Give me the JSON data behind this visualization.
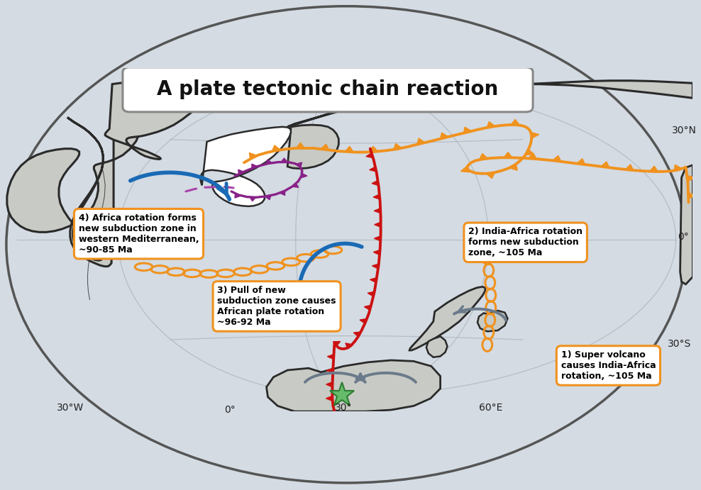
{
  "title": "A plate tectonic chain reaction",
  "bg_color": "#d4dbe3",
  "globe_ocean": "#d4dbe3",
  "land_fill": "#c8cac5",
  "land_edge": "#2a2a2a",
  "tethys_fill": "#ffffff",
  "orange_color": "#f0921e",
  "red_color": "#cc1111",
  "purple_color": "#882288",
  "blue_color": "#1a6ab5",
  "gray_color": "#6a7a8a",
  "chain_color": "#f0921e",
  "star_fill": "#66bb6a",
  "star_edge": "#2e7d32",
  "ann_edge": "#f0921e",
  "ann1": "1) Super volcano\ncauses India-Africa\nrotation, ~105 Ma",
  "ann2": "2) India-Africa rotation\nforms new subduction\nzone, ~105 Ma",
  "ann3": "3) Pull of new\nsubduction zone causes\nAfrican plate rotation\n~96-92 Ma",
  "ann4": "4) Africa rotation forms\nnew subduction zone in\nwestern Mediterranean,\n~90-85 Ma",
  "title_fs": 20,
  "label_fs": 10,
  "ann_fs": 9
}
